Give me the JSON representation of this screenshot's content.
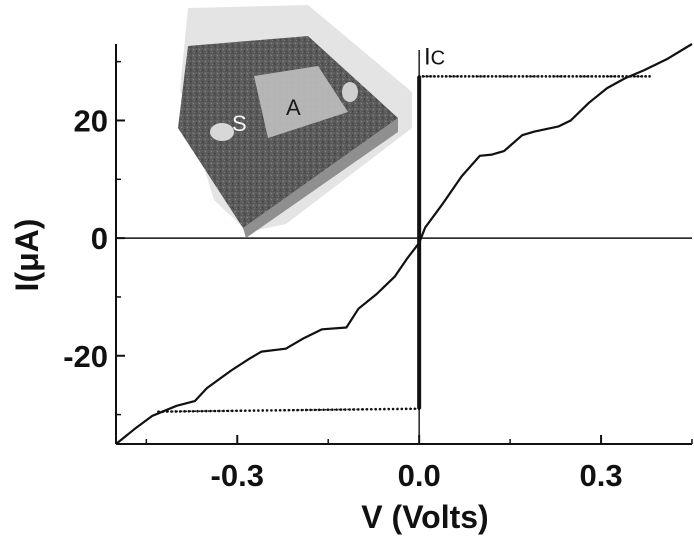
{
  "chart_data": {
    "type": "line",
    "title": "",
    "xlabel": "V (Volts)",
    "ylabel": "I(μA)",
    "xlim": [
      -0.5,
      0.45
    ],
    "ylim": [
      -35,
      33
    ],
    "x_ticks": [
      {
        "value": -0.3,
        "label": "-0.3"
      },
      {
        "value": 0.0,
        "label": "0.0"
      },
      {
        "value": 0.3,
        "label": "0.3"
      }
    ],
    "y_ticks": [
      {
        "value": -20,
        "label": "-20"
      },
      {
        "value": 0,
        "label": "0"
      },
      {
        "value": 20,
        "label": "20"
      }
    ],
    "grid": false,
    "series": [
      {
        "style": "solid",
        "color": "#111111",
        "x": [
          -0.5,
          -0.47,
          -0.44,
          -0.4,
          -0.37,
          -0.35,
          -0.31,
          -0.28,
          -0.26,
          -0.22,
          -0.19,
          -0.16,
          -0.12,
          -0.1,
          -0.07,
          -0.04,
          -0.02,
          0.0,
          0.01,
          0.04,
          0.07,
          0.1,
          0.12,
          0.14,
          0.17,
          0.19,
          0.23,
          0.25,
          0.28,
          0.31,
          0.34,
          0.37,
          0.41,
          0.45
        ],
        "y": [
          -35,
          -32.5,
          -30.2,
          -28.5,
          -27.7,
          -25.5,
          -22.5,
          -20.5,
          -19.3,
          -18.8,
          -17.0,
          -15.5,
          -15.2,
          -12.0,
          -9.5,
          -6.5,
          -3.5,
          -0.8,
          1.8,
          6.0,
          10.5,
          14.0,
          14.2,
          14.8,
          17.5,
          18.1,
          19.0,
          20.0,
          23.0,
          25.5,
          27.2,
          28.5,
          30.5,
          33.0
        ]
      },
      {
        "style": "dotted",
        "color": "#111111",
        "x": [
          -0.0,
          0.38
        ],
        "y": [
          27.5,
          27.5
        ]
      },
      {
        "style": "dotted",
        "color": "#111111",
        "x": [
          -0.43,
          -0.0
        ],
        "y": [
          -29.5,
          -29.0
        ]
      },
      {
        "style": "supercurrent-branch",
        "color": "#111111",
        "x": [
          0.0,
          0.0
        ],
        "y": [
          -29.0,
          27.5
        ]
      }
    ],
    "annotations": [
      {
        "text": "Ic",
        "x": 0.008,
        "y": 29.5
      }
    ],
    "inset": {
      "description_labels": [
        "S",
        "A"
      ]
    }
  }
}
